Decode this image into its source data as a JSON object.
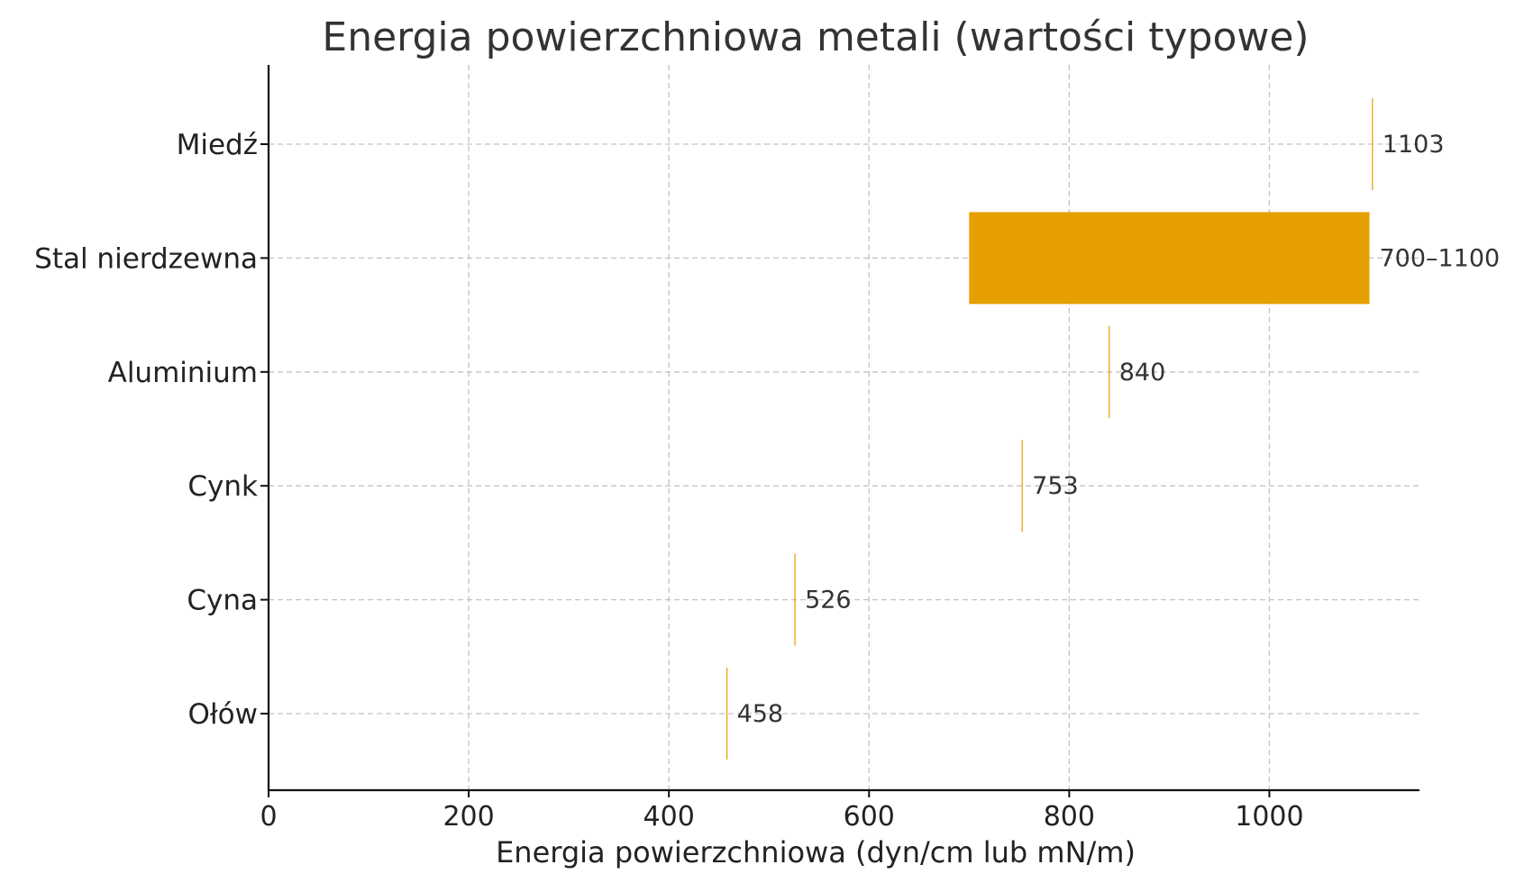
{
  "chart_data": {
    "type": "bar",
    "orientation": "horizontal",
    "title": "Energia powierzchniowa metali (wartości typowe)",
    "xlabel": "Energia powierzchniowa (dyn/cm lub mN/m)",
    "ylabel": "",
    "xlim": [
      0,
      1150
    ],
    "x_ticks": [
      0,
      200,
      400,
      600,
      800,
      1000
    ],
    "x_tick_labels": [
      "0",
      "200",
      "400",
      "600",
      "800",
      "1000"
    ],
    "grid": true,
    "bar_color": "#E69F00",
    "categories": [
      "Miedź",
      "Stal nierdzewna",
      "Aluminium",
      "Cynk",
      "Cyna",
      "Ołów"
    ],
    "bars": [
      {
        "category": "Miedź",
        "start": 1103,
        "end": 1103,
        "label": "1103"
      },
      {
        "category": "Stal nierdzewna",
        "start": 700,
        "end": 1100,
        "label": "700–1100"
      },
      {
        "category": "Aluminium",
        "start": 840,
        "end": 840,
        "label": "840"
      },
      {
        "category": "Cynk",
        "start": 753,
        "end": 753,
        "label": "753"
      },
      {
        "category": "Cyna",
        "start": 526,
        "end": 526,
        "label": "526"
      },
      {
        "category": "Ołów",
        "start": 458,
        "end": 458,
        "label": "458"
      }
    ]
  }
}
